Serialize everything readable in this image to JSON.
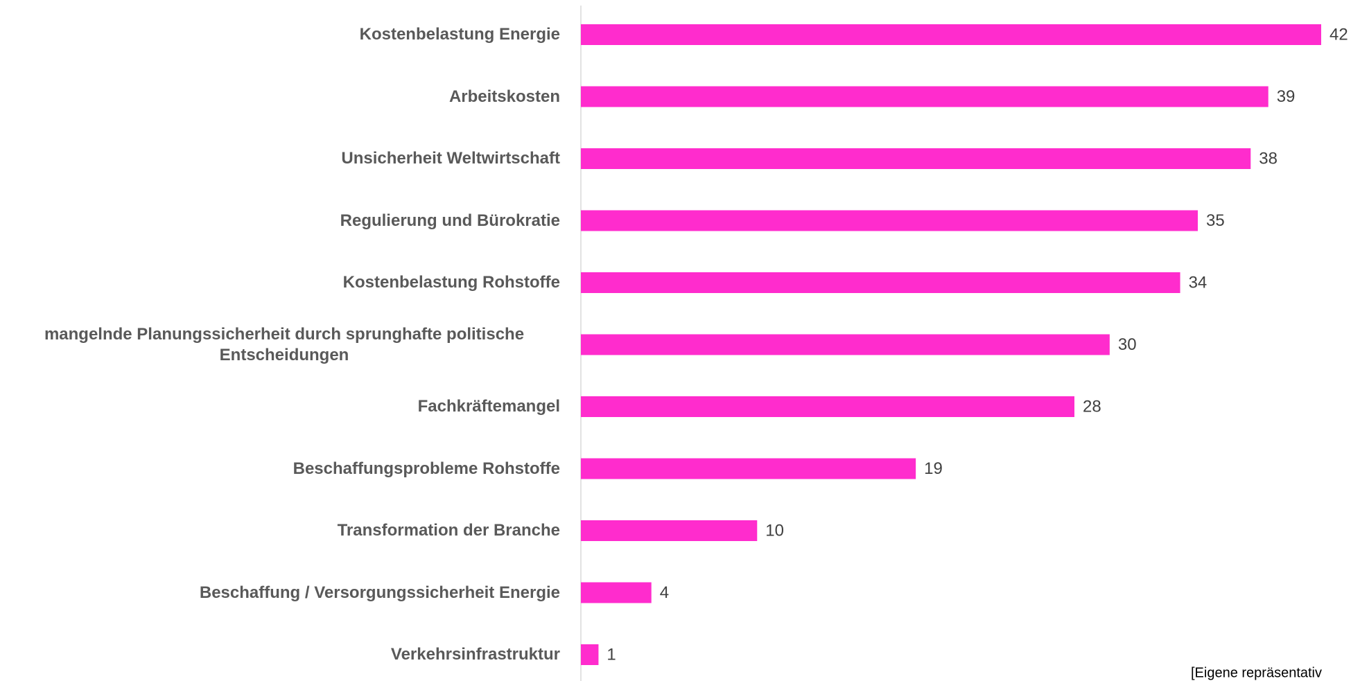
{
  "chart_data": {
    "type": "bar",
    "orientation": "horizontal",
    "categories": [
      "Kostenbelastung Energie",
      "Arbeitskosten",
      "Unsicherheit Weltwirtschaft",
      "Regulierung und Bürokratie",
      "Kostenbelastung Rohstoffe",
      "mangelnde Planungssicherheit durch sprunghafte politische Entscheidungen",
      "Fachkräftemangel",
      "Beschaffungsprobleme Rohstoffe",
      "Transformation der Branche",
      "Beschaffung / Versorgungssicherheit Energie",
      "Verkehrsinfrastruktur"
    ],
    "values": [
      42,
      39,
      38,
      35,
      34,
      30,
      28,
      19,
      10,
      4,
      1
    ],
    "color": "#ff2ccd",
    "source": "[Eigene repräsentativ"
  }
}
